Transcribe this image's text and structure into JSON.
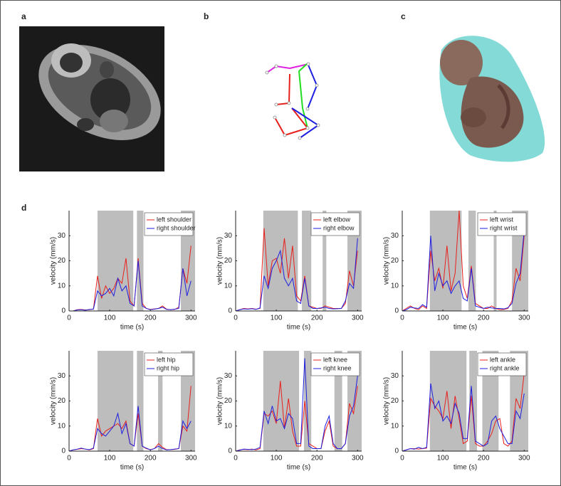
{
  "panel_labels": [
    "a",
    "b",
    "c",
    "d"
  ],
  "chart_data": [
    {
      "type": "line",
      "xlabel": "time (s)",
      "ylabel": "velocity (mm/s)",
      "x": [
        0,
        10,
        20,
        30,
        40,
        50,
        60,
        70,
        80,
        90,
        100,
        110,
        120,
        130,
        140,
        150,
        160,
        170,
        180,
        190,
        200,
        210,
        220,
        230,
        240,
        250,
        260,
        270,
        280,
        290,
        300
      ],
      "xlim": [
        0,
        310
      ],
      "ylim": [
        0,
        40
      ],
      "xticks": [
        0,
        100,
        200,
        300
      ],
      "yticks": [
        0,
        10,
        20,
        30
      ],
      "shaded": [
        [
          70,
          158
        ],
        [
          167,
          183
        ],
        [
          275,
          310
        ]
      ],
      "series": [
        {
          "name": "left shoulder",
          "color": "#e8201c",
          "values": [
            0,
            0,
            0.5,
            0.6,
            0.4,
            0.5,
            0.8,
            14,
            5,
            10,
            7,
            9,
            13,
            11,
            21,
            4,
            2,
            21,
            3,
            1,
            0.6,
            0.8,
            1,
            2,
            0.7,
            0.5,
            0.6,
            1.5,
            17,
            11,
            26
          ]
        },
        {
          "name": "right shoulder",
          "color": "#1f1fe0",
          "values": [
            0,
            0,
            0.4,
            0.5,
            0.3,
            0.6,
            0.7,
            8,
            6,
            7,
            9,
            6,
            13,
            8,
            10,
            3,
            2,
            20,
            2,
            1,
            0.5,
            0.7,
            1,
            1.5,
            0.6,
            0.5,
            0.7,
            1,
            17,
            6,
            12
          ]
        }
      ]
    },
    {
      "type": "line",
      "xlabel": "time (s)",
      "ylabel": "velocity (mm/s)",
      "x": [
        0,
        10,
        20,
        30,
        40,
        50,
        60,
        70,
        80,
        90,
        100,
        110,
        120,
        130,
        140,
        150,
        160,
        170,
        180,
        190,
        200,
        210,
        220,
        230,
        240,
        250,
        260,
        270,
        280,
        290,
        300
      ],
      "xlim": [
        0,
        310
      ],
      "ylim": [
        0,
        40
      ],
      "xticks": [
        0,
        100,
        200,
        300
      ],
      "yticks": [
        0,
        10,
        20,
        30
      ],
      "shaded": [
        [
          68,
          153
        ],
        [
          163,
          186
        ],
        [
          214,
          223
        ],
        [
          275,
          310
        ]
      ],
      "series": [
        {
          "name": "left elbow",
          "color": "#e8201c",
          "values": [
            0,
            0.5,
            1,
            0.8,
            1,
            0.7,
            1,
            33,
            10,
            20,
            21,
            15,
            29,
            13,
            26,
            6,
            4,
            14,
            2,
            1.5,
            1,
            1,
            2,
            1.5,
            1,
            1,
            1,
            3,
            16,
            10,
            24
          ]
        },
        {
          "name": "right elbow",
          "color": "#1f1fe0",
          "values": [
            0,
            0.5,
            0.8,
            0.7,
            0.9,
            0.6,
            1.2,
            14,
            9,
            17,
            20,
            24,
            13,
            10,
            13,
            4,
            3,
            13,
            2,
            1,
            1,
            1.2,
            1.5,
            1,
            0.8,
            0.9,
            1,
            4,
            11,
            9,
            29
          ]
        }
      ]
    },
    {
      "type": "line",
      "xlabel": "time (s)",
      "ylabel": "velocity (mm/s)",
      "x": [
        0,
        10,
        20,
        30,
        40,
        50,
        60,
        70,
        80,
        90,
        100,
        110,
        120,
        130,
        140,
        150,
        160,
        170,
        180,
        190,
        200,
        210,
        220,
        230,
        240,
        250,
        260,
        270,
        280,
        290,
        300
      ],
      "xlim": [
        0,
        310
      ],
      "ylim": [
        0,
        40
      ],
      "xticks": [
        0,
        100,
        200,
        300
      ],
      "yticks": [
        0,
        10,
        20,
        30
      ],
      "shaded": [
        [
          68,
          146
        ],
        [
          163,
          181
        ],
        [
          225,
          232
        ],
        [
          270,
          310
        ]
      ],
      "series": [
        {
          "name": "left wrist",
          "color": "#e8201c",
          "values": [
            0,
            1,
            2,
            1,
            0.5,
            2,
            1,
            24,
            12,
            17,
            9,
            26,
            8,
            15,
            40,
            10,
            5,
            18,
            3,
            2,
            1,
            1,
            2,
            1,
            0.5,
            0.6,
            1,
            4,
            17,
            12,
            30
          ]
        },
        {
          "name": "right wrist",
          "color": "#1f1fe0",
          "values": [
            0,
            0.5,
            1.5,
            1.2,
            1,
            2.5,
            1.5,
            30,
            8,
            15,
            10,
            12,
            7,
            10,
            12,
            5,
            4,
            17,
            2,
            1.5,
            1,
            1.5,
            1.2,
            1,
            1,
            0.8,
            1.3,
            3,
            11,
            15,
            32
          ]
        }
      ]
    },
    {
      "type": "line",
      "xlabel": "time (s)",
      "ylabel": "velocity (mm/s)",
      "x": [
        0,
        10,
        20,
        30,
        40,
        50,
        60,
        70,
        80,
        90,
        100,
        110,
        120,
        130,
        140,
        150,
        160,
        170,
        180,
        190,
        200,
        210,
        220,
        230,
        240,
        250,
        260,
        270,
        280,
        290,
        300
      ],
      "xlim": [
        0,
        310
      ],
      "ylim": [
        0,
        40
      ],
      "xticks": [
        0,
        100,
        200,
        300
      ],
      "yticks": [
        0,
        10,
        20,
        30
      ],
      "shaded": [
        [
          70,
          158
        ],
        [
          167,
          183
        ],
        [
          219,
          230
        ],
        [
          275,
          310
        ]
      ],
      "series": [
        {
          "name": "left hip",
          "color": "#e8201c",
          "values": [
            0,
            0.5,
            0.7,
            1,
            0.8,
            0.5,
            1,
            13,
            6,
            8,
            9,
            10,
            11,
            9,
            12,
            3,
            2,
            15,
            2,
            1,
            0.6,
            1,
            3,
            1.5,
            0.6,
            0.6,
            0.7,
            1,
            10,
            8,
            26
          ]
        },
        {
          "name": "right hip",
          "color": "#1f1fe0",
          "values": [
            0,
            0.5,
            0.8,
            1.2,
            0.8,
            0.6,
            1.2,
            9,
            7,
            6,
            8,
            10,
            15,
            7,
            11,
            3,
            2,
            18,
            2,
            1.2,
            0.5,
            1,
            2,
            1,
            0.5,
            0.6,
            0.8,
            1,
            12,
            9,
            12
          ]
        }
      ]
    },
    {
      "type": "line",
      "xlabel": "time (s)",
      "ylabel": "velocity (mm/s)",
      "x": [
        0,
        10,
        20,
        30,
        40,
        50,
        60,
        70,
        80,
        90,
        100,
        110,
        120,
        130,
        140,
        150,
        160,
        170,
        180,
        190,
        200,
        210,
        220,
        230,
        240,
        250,
        260,
        270,
        280,
        290,
        300
      ],
      "xlim": [
        0,
        310
      ],
      "ylim": [
        0,
        40
      ],
      "xticks": [
        0,
        100,
        200,
        300
      ],
      "yticks": [
        0,
        10,
        20,
        30
      ],
      "shaded": [
        [
          68,
          156
        ],
        [
          168,
          186
        ],
        [
          243,
          262
        ],
        [
          275,
          310
        ]
      ],
      "series": [
        {
          "name": "left knee",
          "color": "#e8201c",
          "values": [
            0,
            0.5,
            0.7,
            0.6,
            0.8,
            0.5,
            1,
            15,
            14,
            16,
            11,
            28,
            9,
            21,
            8,
            2,
            2,
            20,
            3,
            2,
            1,
            1,
            8,
            12,
            2,
            1,
            1,
            3,
            19,
            15,
            26
          ]
        },
        {
          "name": "right knee",
          "color": "#1f1fe0",
          "values": [
            0,
            0.4,
            0.8,
            0.7,
            0.6,
            0.8,
            1.5,
            16,
            11,
            18,
            12,
            13,
            9,
            15,
            13,
            3,
            3,
            37,
            2,
            1,
            1,
            1,
            10,
            14,
            3,
            1,
            1,
            3,
            14,
            18,
            30
          ]
        }
      ]
    },
    {
      "type": "line",
      "xlabel": "time (s)",
      "ylabel": "velocity (mm/s)",
      "x": [
        0,
        10,
        20,
        30,
        40,
        50,
        60,
        70,
        80,
        90,
        100,
        110,
        120,
        130,
        140,
        150,
        160,
        170,
        180,
        190,
        200,
        210,
        220,
        230,
        240,
        250,
        260,
        270,
        280,
        290,
        300
      ],
      "xlim": [
        0,
        310
      ],
      "ylim": [
        0,
        40
      ],
      "xticks": [
        0,
        100,
        200,
        300
      ],
      "yticks": [
        0,
        10,
        20,
        30
      ],
      "shaded": [
        [
          68,
          158
        ],
        [
          165,
          184
        ],
        [
          197,
          237
        ],
        [
          265,
          310
        ]
      ],
      "series": [
        {
          "name": "left ankle",
          "color": "#e8201c",
          "values": [
            0,
            0.5,
            1,
            1,
            0.8,
            1,
            1.2,
            21,
            18,
            16,
            13,
            24,
            9,
            22,
            13,
            3,
            4,
            22,
            3,
            2,
            2,
            4,
            7,
            12,
            13,
            3,
            2,
            4,
            21,
            17,
            31
          ]
        },
        {
          "name": "right ankle",
          "color": "#1f1fe0",
          "values": [
            0,
            0.5,
            1,
            0.8,
            1.5,
            1,
            1.5,
            27,
            17,
            20,
            12,
            14,
            11,
            19,
            15,
            5,
            5,
            26,
            4,
            3,
            2,
            3,
            12,
            14,
            9,
            6,
            3,
            3,
            16,
            13,
            23
          ]
        }
      ]
    }
  ]
}
